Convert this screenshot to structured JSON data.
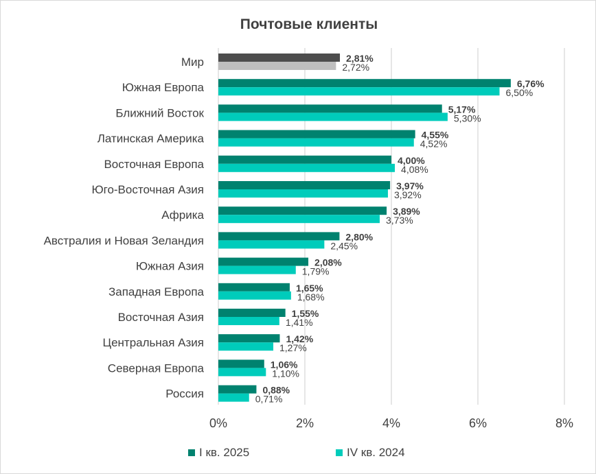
{
  "chart_data": {
    "type": "bar",
    "orientation": "horizontal",
    "title": "Почтовые клиенты",
    "categories": [
      "Мир",
      "Южная Европа",
      "Ближний Восток",
      "Латинская Америка",
      "Восточная Европа",
      "Юго-Восточная Азия",
      "Африка",
      "Австралия и Новая Зеландия",
      "Южная Азия",
      "Западная Европа",
      "Восточная Азия",
      "Центральная Азия",
      "Северная Европа",
      "Россия"
    ],
    "series": [
      {
        "name": "I кв. 2025",
        "values": [
          2.81,
          6.76,
          5.17,
          4.55,
          4.0,
          3.97,
          3.89,
          2.8,
          2.08,
          1.65,
          1.55,
          1.42,
          1.06,
          0.88
        ],
        "labels": [
          "2,81%",
          "6,76%",
          "5,17%",
          "4,55%",
          "4,00%",
          "3,97%",
          "3,89%",
          "2,80%",
          "2,08%",
          "1,65%",
          "1,55%",
          "1,42%",
          "1,06%",
          "0,88%"
        ]
      },
      {
        "name": "IV кв. 2024",
        "values": [
          2.72,
          6.5,
          5.3,
          4.52,
          4.08,
          3.92,
          3.73,
          2.45,
          1.79,
          1.68,
          1.41,
          1.27,
          1.1,
          0.71
        ],
        "labels": [
          "2,72%",
          "6,50%",
          "5,30%",
          "4,52%",
          "4,08%",
          "3,92%",
          "3,73%",
          "2,45%",
          "1,79%",
          "1,68%",
          "1,41%",
          "1,27%",
          "1,10%",
          "0,71%"
        ]
      }
    ],
    "xlim": [
      0,
      8
    ],
    "xticks": [
      0,
      2,
      4,
      6,
      8
    ],
    "xtick_labels": [
      "0%",
      "2%",
      "4%",
      "6%",
      "8%"
    ],
    "grid": "vertical",
    "legend_position": "bottom",
    "colors": {
      "series_a": "#00826f",
      "series_b": "#00ccbb",
      "highlight_a": "#4d4d4d",
      "highlight_b": "#bfbfbf",
      "grid": "#d9d9d9",
      "text": "#404040"
    },
    "highlight_category": "Мир"
  }
}
